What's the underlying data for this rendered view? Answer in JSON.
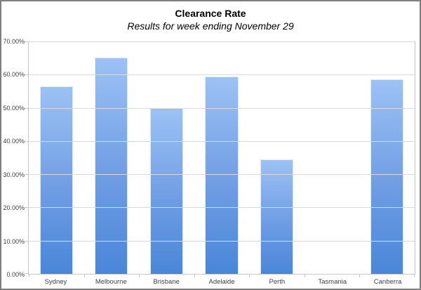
{
  "chart_data": {
    "type": "bar",
    "title": "Clearance Rate",
    "subtitle": "Results for week ending November 29",
    "categories": [
      "Sydney",
      "Melbourne",
      "Brisbane",
      "Adelaide",
      "Perth",
      "Tasmania",
      "Canberra"
    ],
    "values": [
      56.4,
      65.2,
      50.0,
      59.5,
      34.5,
      0.0,
      58.6
    ],
    "unit": "percent",
    "xlabel": "",
    "ylabel": "",
    "ylim": [
      0,
      70
    ],
    "y_tick_step": 10,
    "y_tick_labels": [
      "0.00%",
      "10.00%",
      "20.00%",
      "30.00%",
      "40.00%",
      "50.00%",
      "60.00%",
      "70.00%"
    ],
    "grid": true,
    "legend_position": "none",
    "colors": {
      "bar_top": "#9cc2f4",
      "bar_bottom": "#4a86d8",
      "gridline": "#d9d9d9",
      "axis": "#c6c6c6",
      "text": "#404040",
      "frame_border": "#7f7f7f"
    }
  }
}
